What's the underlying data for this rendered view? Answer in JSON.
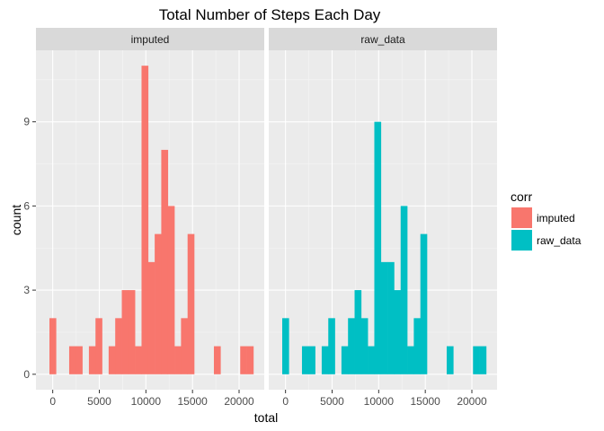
{
  "chart_data": {
    "type": "bar",
    "title": "Total Number of Steps Each Day",
    "xlabel": "total",
    "ylabel": "count",
    "xlim": [
      -1800,
      22700
    ],
    "ylim": [
      -0.55,
      11.55
    ],
    "x_ticks": [
      0,
      5000,
      10000,
      15000,
      20000
    ],
    "x_tick_labels": [
      "0",
      "5000",
      "10000",
      "15000",
      "20000"
    ],
    "y_ticks": [
      0,
      3,
      6,
      9
    ],
    "y_tick_labels": [
      "0",
      "3",
      "6",
      "9"
    ],
    "minor_x_ticks": [
      2500,
      7500,
      12500,
      17500
    ],
    "minor_y_ticks": [
      1.5,
      4.5,
      7.5,
      10.5
    ],
    "grid": true,
    "bin_width": 706,
    "bin_start": -353,
    "legend": {
      "title": "corr",
      "position": "right",
      "entries": [
        {
          "label": "imputed",
          "color": "#F8766D"
        },
        {
          "label": "raw_data",
          "color": "#00BFC4"
        }
      ]
    },
    "panels": [
      {
        "strip": "imputed",
        "color": "#F8766D",
        "counts": [
          2,
          0,
          0,
          1,
          1,
          0,
          1,
          2,
          0,
          1,
          2,
          3,
          3,
          1,
          11,
          4,
          5,
          8,
          6,
          1,
          2,
          5,
          0,
          0,
          0,
          1,
          0,
          0,
          0,
          1,
          1
        ]
      },
      {
        "strip": "raw_data",
        "color": "#00BFC4",
        "counts": [
          2,
          0,
          0,
          1,
          1,
          0,
          1,
          2,
          0,
          1,
          2,
          3,
          2,
          1,
          9,
          4,
          4,
          3,
          6,
          1,
          2,
          5,
          0,
          0,
          0,
          1,
          0,
          0,
          0,
          1,
          1
        ]
      }
    ]
  }
}
